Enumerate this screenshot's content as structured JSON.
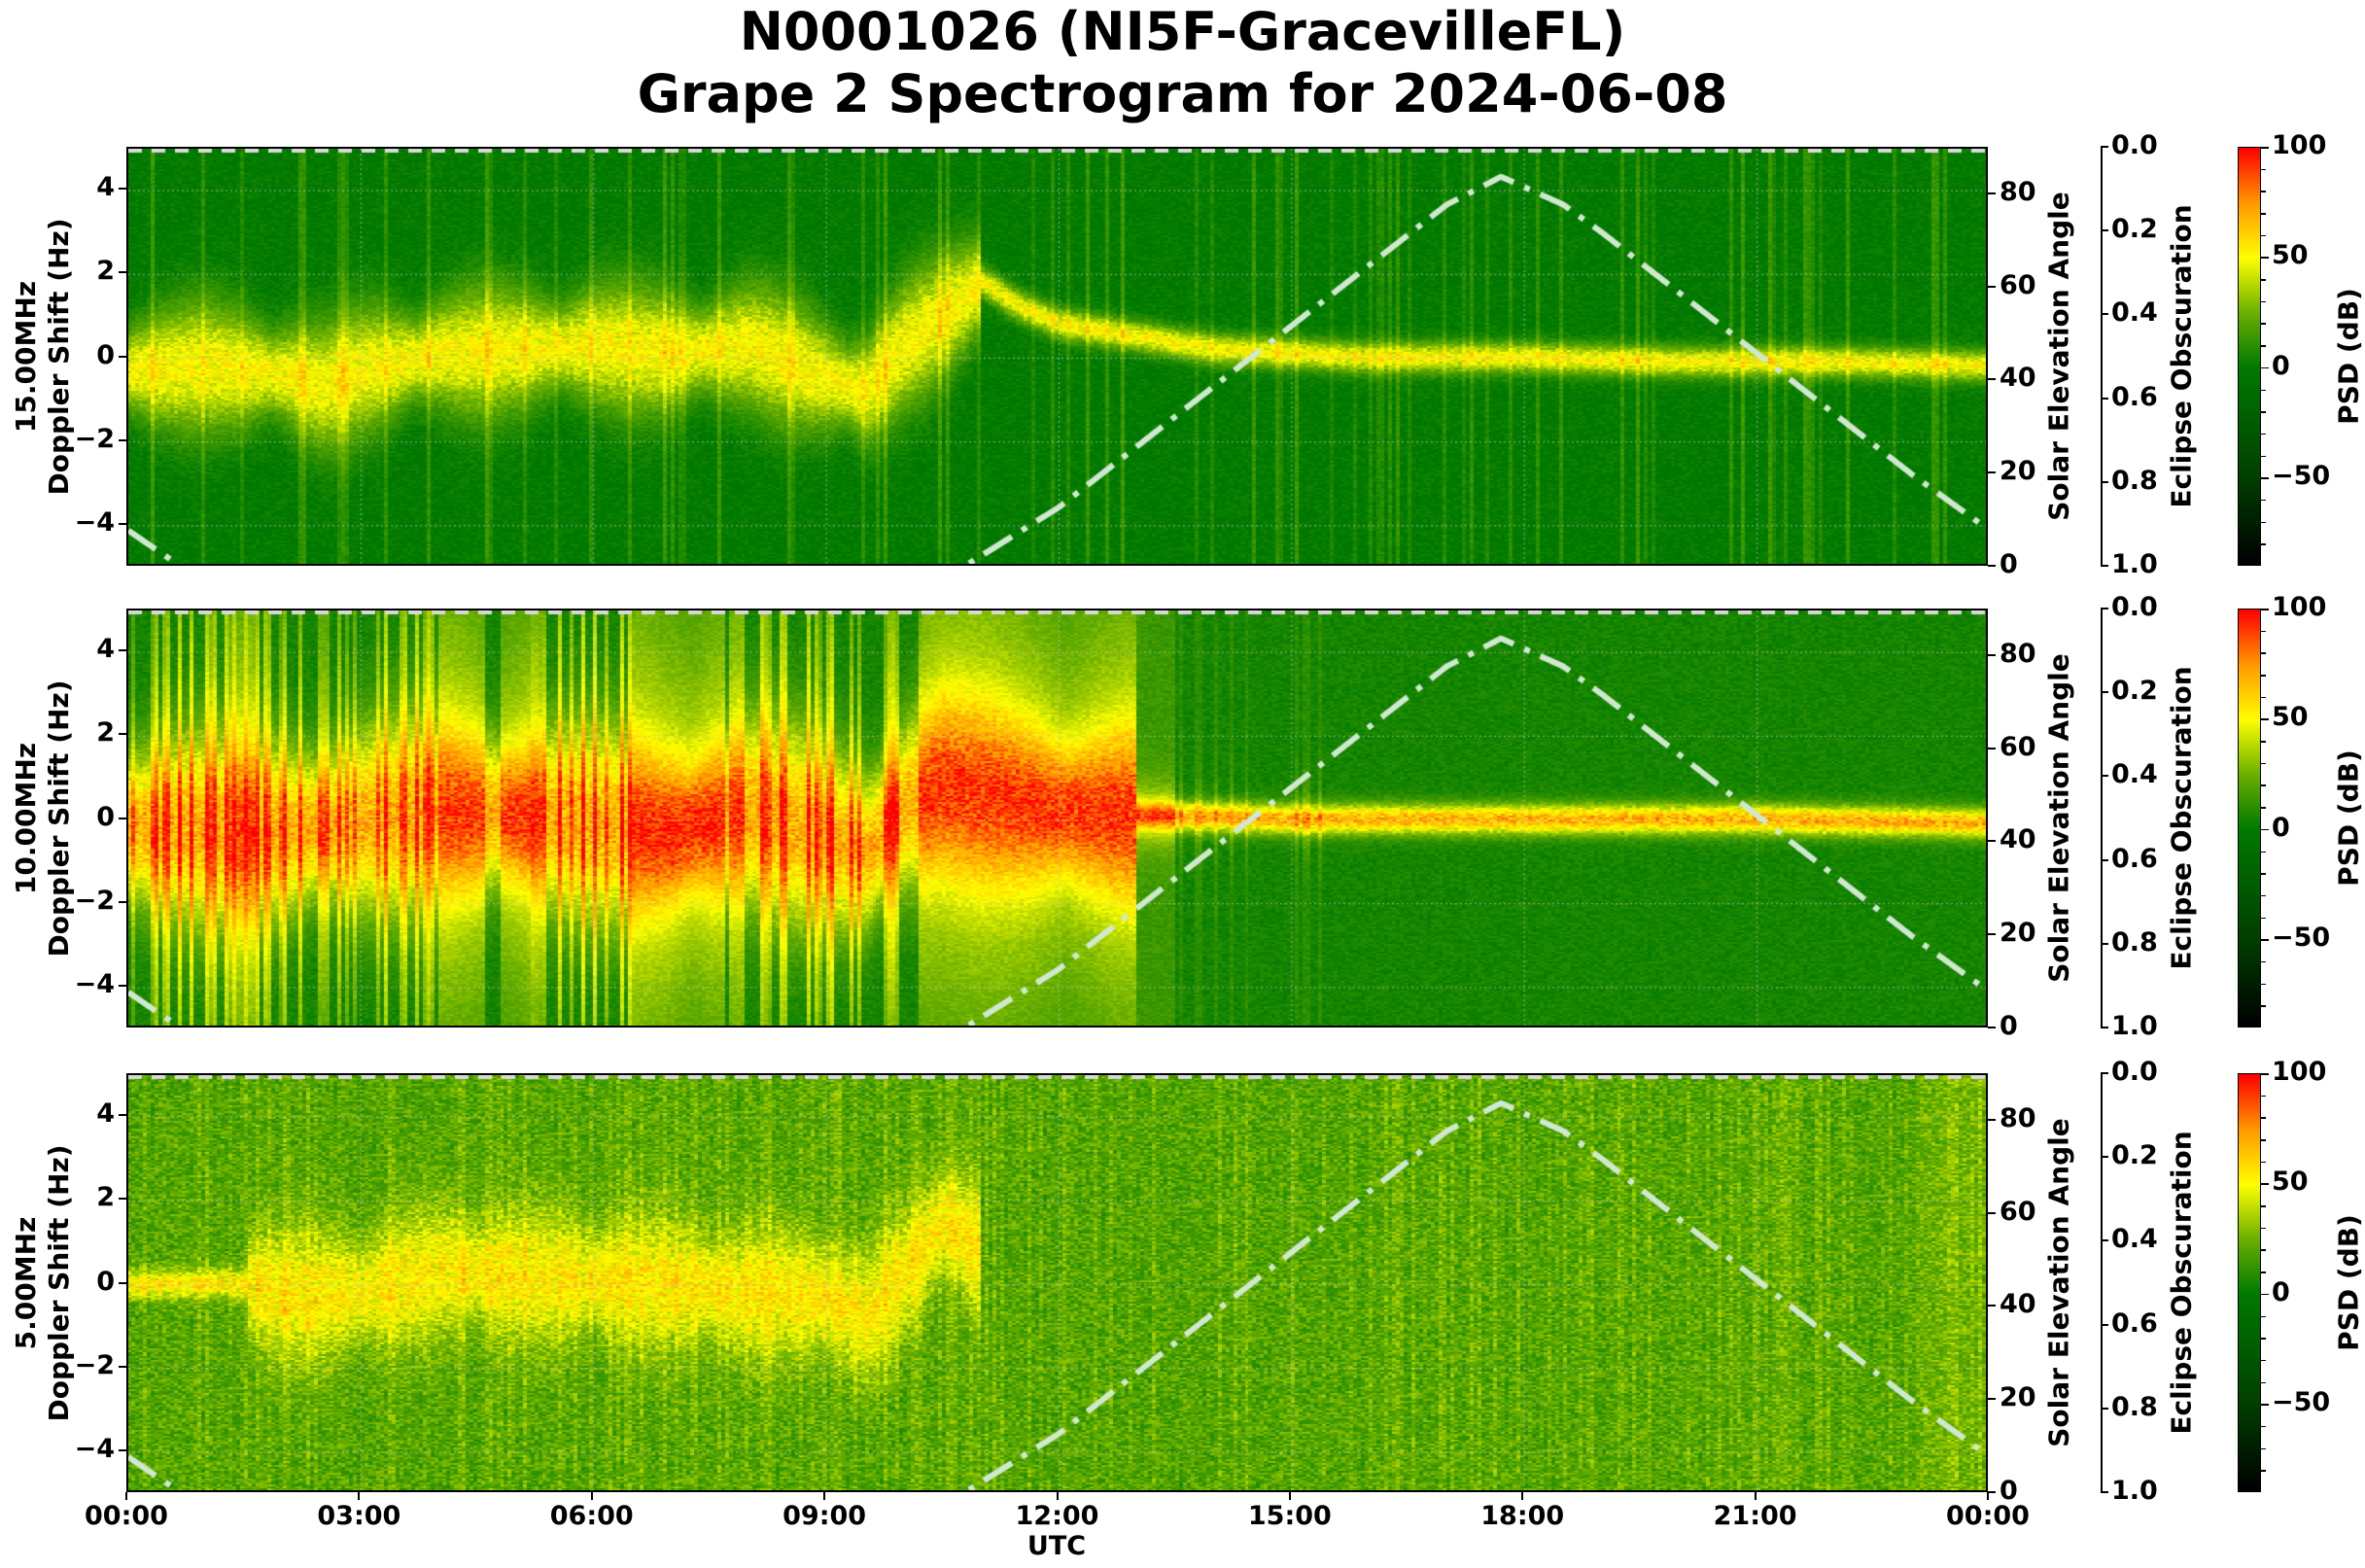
{
  "title": {
    "line1": "N0001026 (NI5F-GracevilleFL)",
    "line2": "Grape 2 Spectrogram for 2024-06-08"
  },
  "colors": {
    "background": "#ffffff",
    "solar_curve": "#cfe8cf",
    "eclipse_line": "#d9d9d9",
    "grid": "#c8c8c8",
    "colormap": [
      {
        "v": -90,
        "c": "#000000"
      },
      {
        "v": -50,
        "c": "#003f00"
      },
      {
        "v": 0,
        "c": "#007a00"
      },
      {
        "v": 25,
        "c": "#6bb000"
      },
      {
        "v": 50,
        "c": "#ffff00"
      },
      {
        "v": 75,
        "c": "#ff9900"
      },
      {
        "v": 100,
        "c": "#ff0000"
      }
    ]
  },
  "axes": {
    "x_label": "UTC",
    "x_ticks": [
      "00:00",
      "03:00",
      "06:00",
      "09:00",
      "12:00",
      "15:00",
      "18:00",
      "21:00",
      "00:00"
    ],
    "y_ticks": [
      "4",
      "2",
      "0",
      "−2",
      "−4"
    ],
    "y_tick_values": [
      4,
      2,
      0,
      -2,
      -4
    ],
    "y_range": [
      -5,
      5
    ],
    "right_label": "Solar Elevation Angle",
    "right_ticks": [
      "80",
      "60",
      "40",
      "20",
      "0"
    ],
    "right_tick_values": [
      80,
      60,
      40,
      20,
      0
    ],
    "right_range": [
      0,
      90
    ],
    "eclipse_label": "Eclipse Obscuration",
    "eclipse_ticks": [
      "0.0",
      "0.2",
      "0.4",
      "0.6",
      "0.8",
      "1.0"
    ],
    "colorbar_label": "PSD (dB)",
    "colorbar_ticks": [
      "100",
      "50",
      "0",
      "−50"
    ],
    "colorbar_tick_values": [
      100,
      50,
      0,
      -50
    ],
    "colorbar_range": [
      -90,
      100
    ]
  },
  "panels": [
    {
      "freq_label": "15.00MHz",
      "ylabel": "Doppler Shift (Hz)"
    },
    {
      "freq_label": "10.00MHz",
      "ylabel": "Doppler Shift (Hz)"
    },
    {
      "freq_label": "5.00MHz",
      "ylabel": "Doppler Shift (Hz)"
    }
  ],
  "chart_data": [
    {
      "type": "heatmap",
      "title": "N0001026 (NI5F-GracevilleFL) Grape 2 Spectrogram for 2024-06-08",
      "panel": "15.00MHz",
      "xlabel": "UTC",
      "ylabel": "15.00MHz Doppler Shift (Hz)",
      "x_range_hours": [
        0,
        24
      ],
      "ylim": [
        -5,
        5
      ],
      "colorbar": {
        "label": "PSD (dB)",
        "range": [
          -90,
          100
        ],
        "ticks": [
          100,
          50,
          0,
          -50
        ]
      },
      "background_db": 0,
      "signal_trace_hz": {
        "x_hours": [
          0,
          1,
          2,
          2.5,
          3,
          4,
          5,
          6,
          7,
          8,
          9,
          9.5,
          10,
          10.5,
          11,
          11.5,
          12,
          13,
          14,
          15,
          16,
          18,
          20,
          22,
          24
        ],
        "y": [
          -0.3,
          -0.2,
          -0.4,
          -0.7,
          -0.3,
          0.1,
          0.2,
          0.3,
          0.1,
          0.3,
          -0.5,
          -0.8,
          0.3,
          1.0,
          1.8,
          1.2,
          0.8,
          0.5,
          0.2,
          0.1,
          0.0,
          0.0,
          -0.1,
          -0.1,
          -0.2
        ]
      },
      "signal_peak_db": 55,
      "grid": true
    },
    {
      "type": "heatmap",
      "panel": "10.00MHz",
      "xlabel": "UTC",
      "ylabel": "10.00MHz Doppler Shift (Hz)",
      "x_range_hours": [
        0,
        24
      ],
      "ylim": [
        -5,
        5
      ],
      "colorbar": {
        "label": "PSD (dB)",
        "range": [
          -90,
          100
        ],
        "ticks": [
          100,
          50,
          0,
          -50
        ]
      },
      "background_db": 5,
      "signal_trace_hz": {
        "x_hours": [
          0,
          2,
          4,
          5,
          6,
          7,
          8,
          9,
          9.5,
          10,
          10.5,
          11,
          12,
          13,
          15,
          18,
          21,
          24
        ],
        "y": [
          -0.2,
          -0.3,
          0.2,
          0.1,
          -0.1,
          -0.3,
          0.2,
          -0.4,
          -0.8,
          0.3,
          0.8,
          0.6,
          0.2,
          0.1,
          0.0,
          0.0,
          0.0,
          -0.1
        ]
      },
      "signal_peak_db": 75,
      "grid": true
    },
    {
      "type": "heatmap",
      "panel": "5.00MHz",
      "xlabel": "UTC",
      "ylabel": "5.00MHz Doppler Shift (Hz)",
      "x_range_hours": [
        0,
        24
      ],
      "ylim": [
        -5,
        5
      ],
      "colorbar": {
        "label": "PSD (dB)",
        "range": [
          -90,
          100
        ],
        "ticks": [
          100,
          50,
          0,
          -50
        ]
      },
      "background_db": 18,
      "signal_trace_hz": {
        "x_hours": [
          0,
          1.5,
          2,
          3,
          4,
          5,
          6,
          7,
          8,
          9,
          9.5,
          10,
          10.5,
          11
        ],
        "y": [
          0,
          0,
          -0.3,
          -0.2,
          0.3,
          0.2,
          0.1,
          0.0,
          -0.2,
          -0.3,
          -0.8,
          0.3,
          1.5,
          0.8
        ]
      },
      "signal_peak_db": 55,
      "grid": true
    },
    {
      "type": "line",
      "name": "Solar Elevation Angle",
      "axis": "right",
      "ylabel": "Solar Elevation Angle",
      "ylim": [
        0,
        90
      ],
      "line_style": "dash-dot",
      "x_hours": [
        0,
        0.7,
        10.75,
        12,
        13,
        14,
        15,
        16,
        17,
        17.7,
        18.5,
        19,
        20,
        21,
        22,
        23,
        24
      ],
      "values": [
        8,
        0,
        0,
        13,
        26,
        39,
        52,
        65,
        78,
        84,
        78,
        72,
        59,
        46,
        33,
        20,
        8
      ]
    },
    {
      "type": "line",
      "name": "Eclipse Obscuration",
      "axis": "right-offset",
      "ylabel": "Eclipse Obscuration",
      "ylim": [
        1.0,
        0.0
      ],
      "line_style": "dashed",
      "x_hours": [
        0,
        24
      ],
      "values": [
        0.0,
        0.0
      ]
    }
  ]
}
